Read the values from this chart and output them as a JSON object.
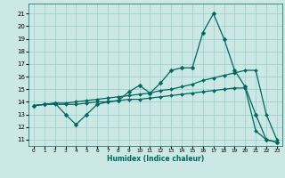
{
  "title": "",
  "xlabel": "Humidex (Indice chaleur)",
  "background_color": "#cce8e4",
  "grid_color": "#99cccc",
  "line_color": "#006660",
  "x_ticks": [
    0,
    1,
    2,
    3,
    4,
    5,
    6,
    7,
    8,
    9,
    10,
    11,
    12,
    13,
    14,
    15,
    16,
    17,
    18,
    19,
    20,
    21,
    22,
    23
  ],
  "y_ticks": [
    11,
    12,
    13,
    14,
    15,
    16,
    17,
    18,
    19,
    20,
    21
  ],
  "ylim": [
    10.5,
    21.8
  ],
  "xlim": [
    -0.5,
    23.5
  ],
  "series": [
    {
      "x": [
        0,
        1,
        2,
        3,
        4,
        5,
        6,
        7,
        8,
        9,
        10,
        11,
        12,
        13,
        14,
        15,
        16,
        17,
        18,
        19,
        20,
        21,
        22,
        23
      ],
      "y": [
        13.7,
        13.8,
        13.9,
        13.0,
        12.2,
        13.0,
        13.8,
        14.0,
        14.1,
        14.8,
        15.3,
        14.7,
        15.5,
        16.5,
        16.7,
        16.7,
        19.5,
        21.0,
        19.0,
        16.5,
        15.2,
        13.0,
        11.0,
        10.8
      ],
      "marker": "D",
      "markersize": 2.5,
      "linewidth": 0.9
    },
    {
      "x": [
        0,
        1,
        2,
        3,
        4,
        5,
        6,
        7,
        8,
        9,
        10,
        11,
        12,
        13,
        14,
        15,
        16,
        17,
        18,
        19,
        20,
        21,
        22,
        23
      ],
      "y": [
        13.7,
        13.8,
        13.9,
        13.9,
        14.0,
        14.1,
        14.2,
        14.3,
        14.4,
        14.5,
        14.6,
        14.7,
        14.9,
        15.0,
        15.2,
        15.4,
        15.7,
        15.9,
        16.1,
        16.3,
        16.5,
        16.5,
        13.0,
        11.0
      ],
      "marker": "D",
      "markersize": 2.0,
      "linewidth": 0.9
    },
    {
      "x": [
        0,
        1,
        2,
        3,
        4,
        5,
        6,
        7,
        8,
        9,
        10,
        11,
        12,
        13,
        14,
        15,
        16,
        17,
        18,
        19,
        20,
        21,
        22,
        23
      ],
      "y": [
        13.7,
        13.8,
        13.8,
        13.8,
        13.8,
        13.9,
        14.0,
        14.0,
        14.1,
        14.2,
        14.2,
        14.3,
        14.4,
        14.5,
        14.6,
        14.7,
        14.8,
        14.9,
        15.0,
        15.1,
        15.1,
        11.7,
        11.0,
        10.8
      ],
      "marker": "D",
      "markersize": 2.0,
      "linewidth": 0.9
    }
  ]
}
